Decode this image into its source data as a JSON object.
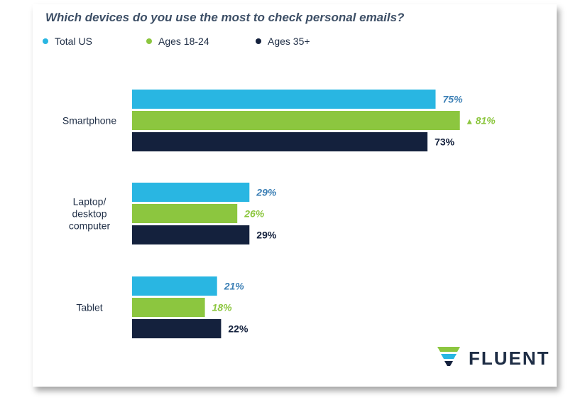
{
  "colors": {
    "total": "#29b6e2",
    "young": "#8cc63f",
    "old": "#14213d"
  },
  "chart_data": {
    "type": "bar",
    "orientation": "horizontal",
    "title": "Which devices do you use the most to check personal emails?",
    "categories": [
      {
        "lines": [
          "Smartphone"
        ]
      },
      {
        "lines": [
          "Laptop/",
          "desktop",
          "computer"
        ]
      },
      {
        "lines": [
          "Tablet"
        ]
      }
    ],
    "series": [
      {
        "name": "Total US",
        "values": [
          75,
          29,
          21
        ],
        "labels": [
          "75%",
          "29%",
          "21%"
        ]
      },
      {
        "name": "Ages 18-24",
        "values": [
          81,
          26,
          18
        ],
        "labels": [
          "81%",
          "26%",
          "18%"
        ]
      },
      {
        "name": "Ages 35+",
        "values": [
          73,
          29,
          22
        ],
        "labels": [
          "73%",
          "29%",
          "22%"
        ]
      }
    ],
    "highlight": {
      "series": 1,
      "category": 0,
      "marker": "▲"
    },
    "xlim": [
      0,
      100
    ],
    "grid": false,
    "legend_position": "top-left"
  },
  "logo": {
    "text": "FLUENT"
  }
}
